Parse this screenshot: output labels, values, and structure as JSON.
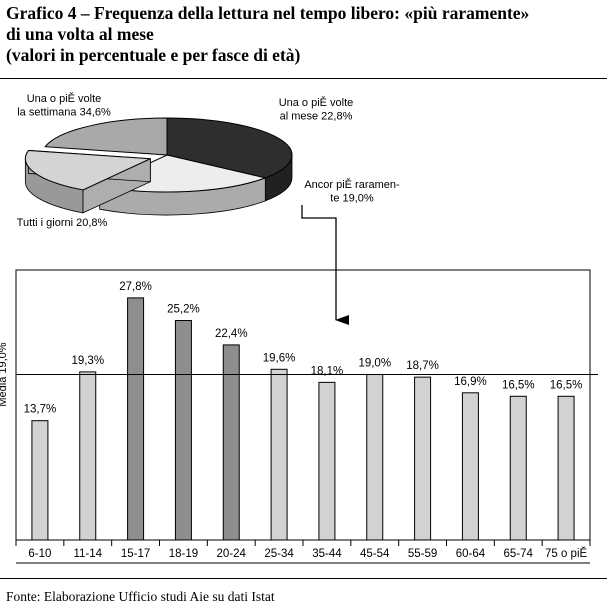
{
  "title": {
    "line1": "Grafico 4 – Frequenza della lettura nel tempo libero: «più raramente»",
    "line2": "di una volta al mese",
    "line3": "(valori in percentuale e per fasce di età)"
  },
  "footer": "Fonte: Elaborazione Ufficio studi Aie su dati Istat",
  "chart_data": [
    {
      "type": "pie",
      "style": "3d-exploded",
      "slices": [
        {
          "label_lines": [
            "Una o piĚ volte",
            "la settimana 34,6%"
          ],
          "value": 34.6,
          "color": "#2e2e2e"
        },
        {
          "label_lines": [
            "Una o piĚ volte",
            "al mese 22,8%"
          ],
          "value": 22.8,
          "color": "#ededed"
        },
        {
          "label_lines": [
            "Ancor piĚ raramen-",
            "te 19,0%"
          ],
          "value": 19.0,
          "color": "#d4d4d4",
          "exploded": true
        },
        {
          "label_lines": [
            "Tutti i giorni 20,8%"
          ],
          "value": 20.8,
          "color": "#a9a9a9"
        }
      ]
    },
    {
      "type": "bar",
      "categories": [
        "6-10",
        "11-14",
        "15-17",
        "18-19",
        "20-24",
        "25-34",
        "35-44",
        "45-54",
        "55-59",
        "60-64",
        "65-74",
        "75 o piĚ"
      ],
      "values": [
        13.7,
        19.3,
        27.8,
        25.2,
        22.4,
        19.6,
        18.1,
        19.0,
        18.7,
        16.9,
        16.5,
        16.5
      ],
      "value_labels": [
        "13,7%",
        "19,3%",
        "27,8%",
        "25,2%",
        "22,4%",
        "19,6%",
        "18,1%",
        "19,0%",
        "18,7%",
        "16,9%",
        "16,5%",
        "16,5%"
      ],
      "highlighted_categories": [
        "15-17",
        "18-19",
        "20-24"
      ],
      "bar_color": "#d2d2d2",
      "highlight_color": "#8e8e8e",
      "reference_line": {
        "label": "Media 19,0%",
        "value": 19.0
      },
      "ylim": [
        0,
        31
      ],
      "grid": false
    }
  ]
}
